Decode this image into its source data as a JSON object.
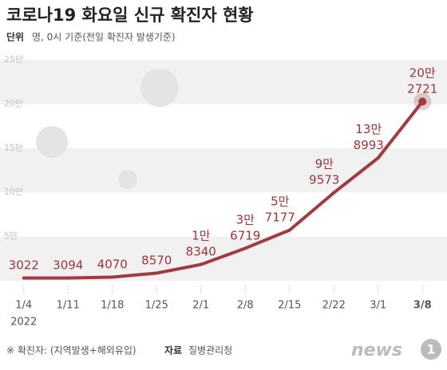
{
  "title": "코로나19 화요일 신규 확진자 현황",
  "subtitle": {
    "label": "단위",
    "text": "명, 0시 기준(전일 확진자 발생기준)"
  },
  "chart_data": {
    "type": "line",
    "categories": [
      "1/4",
      "1/11",
      "1/18",
      "1/25",
      "2/1",
      "2/8",
      "2/15",
      "2/22",
      "3/1",
      "3/8"
    ],
    "x_subtitle": "2022",
    "series": [
      {
        "name": "신규 확진자",
        "color": "#a33a3e",
        "values": [
          3022,
          3094,
          4070,
          8570,
          18340,
          36719,
          57177,
          99573,
          138993,
          202721
        ],
        "value_labels": [
          "3022",
          "3094",
          "4070",
          "8570",
          "1만\n8340",
          "3만\n6719",
          "5만\n7177",
          "9만\n9573",
          "13만\n8993",
          "20만\n2721"
        ]
      }
    ],
    "ylim": [
      0,
      250000
    ],
    "yticks": [
      {
        "value": 0,
        "label": ""
      },
      {
        "value": 50000,
        "label": "5만"
      },
      {
        "value": 100000,
        "label": "10만"
      },
      {
        "value": 150000,
        "label": "15만"
      },
      {
        "value": 200000,
        "label": "20만"
      },
      {
        "value": 250000,
        "label": "25만"
      }
    ],
    "grid": true
  },
  "footnote": {
    "note": "※ 확진자: (지역발생+해외유입)",
    "source_label": "자료",
    "source": "질병관리청"
  },
  "logo": {
    "text": "news",
    "num": "1"
  }
}
